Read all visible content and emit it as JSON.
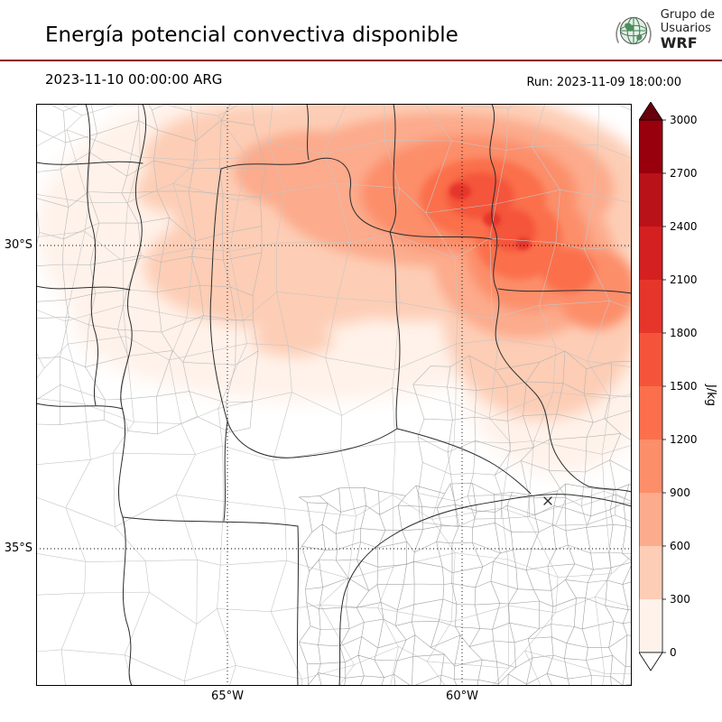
{
  "header": {
    "title": "Energía potencial convectiva disponible",
    "valid_time": "2023-11-10 00:00:00 ARG",
    "run_label": "Run: 2023-11-09 18:00:00",
    "divider_color": "#8b0d0d",
    "logo": {
      "org_line1": "Grupo de",
      "org_line2": "Usuarios",
      "org_line3": "WRF"
    }
  },
  "map_axes": {
    "lat_labels": [
      "30°S",
      "35°S"
    ],
    "lon_labels": [
      "65°W",
      "60°W"
    ]
  },
  "colorbar": {
    "label": "J/kg",
    "ticks_top_to_bottom": [
      "3000",
      "2700",
      "2400",
      "2100",
      "1800",
      "1500",
      "1200",
      "900",
      "600",
      "300",
      "0"
    ],
    "band_colors_top_to_bottom": [
      "#99000d",
      "#b91218",
      "#d42020",
      "#e6352b",
      "#f4553a",
      "#fb6f4c",
      "#fc8e6a",
      "#fcab8c",
      "#fdcdb5",
      "#fff2ea"
    ],
    "over_color": "#67000d",
    "under_color": "#ffffff"
  },
  "chart_data": {
    "type": "heatmap",
    "variable": "CAPE (convective available potential energy)",
    "title": "Energía potencial convectiva disponible",
    "units": "J/kg",
    "valid_time": "2023-11-10 00:00:00 ARG",
    "model_run": "Run: 2023-11-09 18:00:00",
    "contour_levels": [
      0,
      300,
      600,
      900,
      1200,
      1500,
      1800,
      2100,
      2400,
      2700,
      3000
    ],
    "colormap": "Reds (white to dark red), filled contours, extend arrows on both ends",
    "legend_position": "right vertical colorbar",
    "gridlines_lat_deg": [
      -30,
      -35
    ],
    "gridlines_lon_deg": [
      -65,
      -60
    ],
    "map_extent_estimate_deg": {
      "lon": [
        -69.1,
        -56.4
      ],
      "lat": [
        -37.3,
        -27.7
      ]
    },
    "field_summary": [
      {
        "area": "north of ~31°S between ~58°W and ~66°W",
        "values_J_kg": "300-1200 widespread"
      },
      {
        "area": "core near 29-30°S, 60.5-62°W",
        "values_J_kg": "1500-2100 peak"
      },
      {
        "area": "south of ~32°S",
        "values_J_kg": "near 0"
      }
    ]
  }
}
